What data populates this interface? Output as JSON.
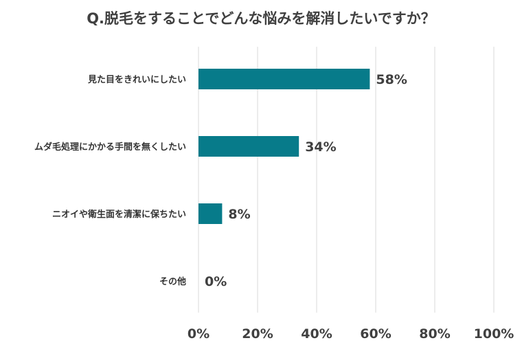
{
  "chart_data": {
    "type": "bar",
    "orientation": "horizontal",
    "title": "Q.脱毛をすることでどんな悩みを解消したいですか？",
    "categories": [
      "見た目をきれいにしたい",
      "ムダ毛処理にかかる手間を無くしたい",
      "ニオイや衛生面を清潔に保ちたい",
      "その他"
    ],
    "values": [
      58,
      34,
      8,
      0
    ],
    "data_labels": [
      "58%",
      "34%",
      "8%",
      "0%"
    ],
    "xlim": [
      0,
      100
    ],
    "x_ticks": [
      0,
      20,
      40,
      60,
      80,
      100
    ],
    "x_tick_labels": [
      "0%",
      "20%",
      "40%",
      "60%",
      "80%",
      "100%"
    ],
    "grid": true,
    "legend": "none",
    "bar_color": "#077b8a"
  }
}
